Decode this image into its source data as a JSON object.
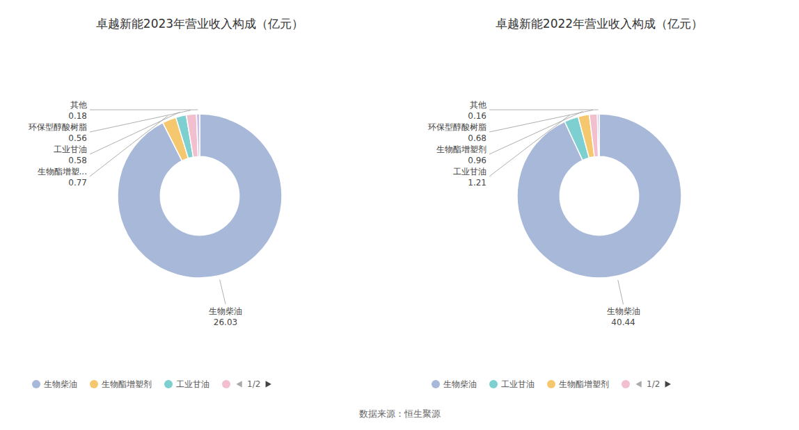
{
  "chart_data": [
    {
      "type": "pie",
      "title": "卓越新能2023年营业收入构成（亿元）",
      "categories": [
        "生物柴油",
        "生物酯增塑...",
        "工业甘油",
        "环保型醇酸树脂",
        "其他"
      ],
      "values": [
        26.03,
        0.77,
        0.58,
        0.56,
        0.18
      ],
      "colors": [
        "#a8b8d8",
        "#f5c870",
        "#7ecfcf",
        "#f2bfcf",
        "#c8c0e8"
      ],
      "data_labels": true,
      "legend": "bottom",
      "annotations": [
        {
          "text": "生物柴油",
          "color": "#a8b8d8"
        },
        {
          "text": "生物酯增塑剂",
          "color": "#f5c870"
        },
        {
          "text": "工业甘油",
          "color": "#7ecfcf"
        },
        {
          "color": "#f2bfcf"
        },
        {
          "text": "1/2"
        }
      ]
    },
    {
      "type": "pie",
      "title": "卓越新能2022年营业收入构成（亿元）",
      "categories": [
        "生物柴油",
        "工业甘油",
        "生物酯增塑剂",
        "环保型醇酸树脂",
        "其他"
      ],
      "values": [
        40.44,
        1.21,
        0.96,
        0.68,
        0.16
      ],
      "colors": [
        "#a8b8d8",
        "#7ecfcf",
        "#f5c870",
        "#f2bfcf",
        "#c8c0e8"
      ],
      "data_labels": true,
      "legend": "bottom",
      "annotations": [
        {
          "text": "生物柴油",
          "color": "#a8b8d8"
        },
        {
          "text": "工业甘油",
          "color": "#7ecfcf"
        },
        {
          "text": "生物酯增塑剂",
          "color": "#f5c870"
        },
        {
          "color": "#f2bfcf"
        },
        {
          "text": "1/2"
        }
      ]
    }
  ],
  "annotations": [
    {
      "text": "数据来源：恒生聚源"
    }
  ]
}
